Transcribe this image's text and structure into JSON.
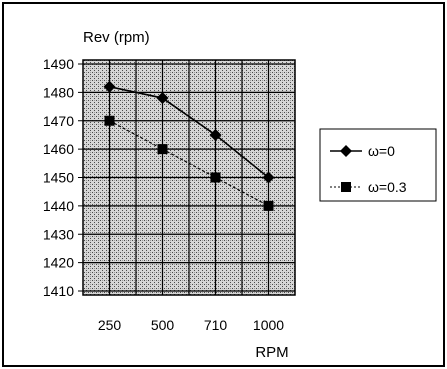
{
  "chart_data": {
    "type": "line",
    "categories": [
      "250",
      "500",
      "710",
      "1000"
    ],
    "ylabel": "Rev (rpm)",
    "xlabel": "RPM",
    "ylim": [
      1410,
      1490
    ],
    "yticks": [
      "1490",
      "1480",
      "1470",
      "1460",
      "1450",
      "1440",
      "1430",
      "1420",
      "1410"
    ],
    "grid": true,
    "legend_position": "right",
    "series": [
      {
        "name": "ω=0",
        "marker": "diamond",
        "values": [
          1482,
          1478,
          1465,
          1450
        ]
      },
      {
        "name": "ω=0.3",
        "marker": "square",
        "values": [
          1470,
          1460,
          1450,
          1440
        ]
      }
    ]
  }
}
